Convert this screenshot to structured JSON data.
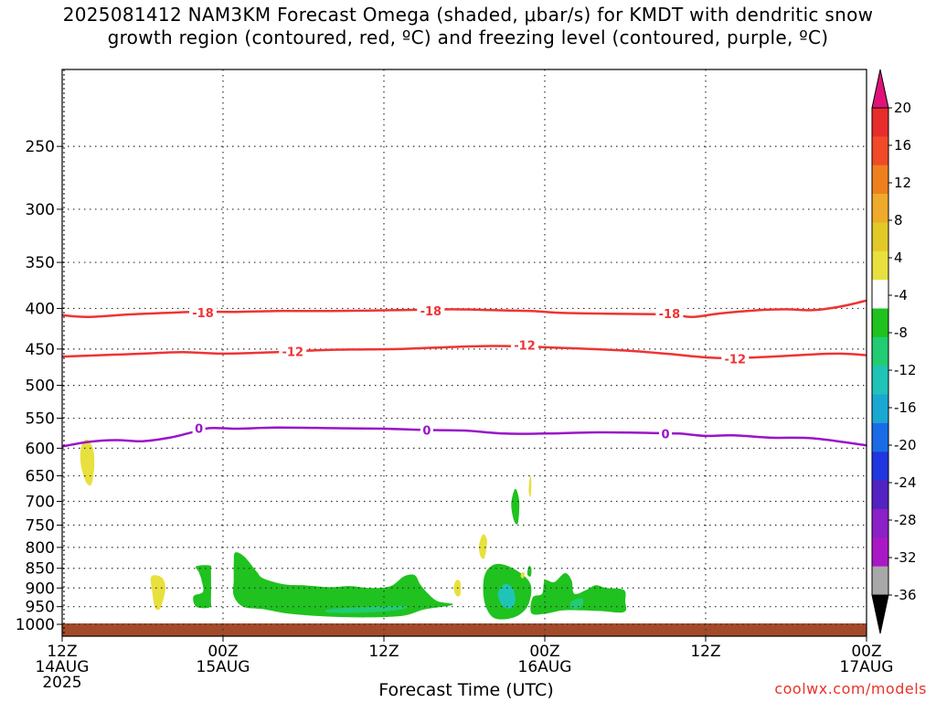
{
  "title": {
    "line1": "2025081412 NAM3KM Forecast Omega (shaded, μbar/s) for KMDT with dendritic snow",
    "line2": "growth region (contoured, red, ºC) and freezing level (contoured, purple, ºC)"
  },
  "credit": "coolwx.com/models",
  "chart_data": {
    "type": "time-height",
    "xlabel": "Forecast Time (UTC)",
    "x_ticks": [
      {
        "hour": 0,
        "lines": [
          "12Z",
          "14AUG",
          "2025"
        ]
      },
      {
        "hour": 12,
        "lines": [
          "00Z",
          "15AUG"
        ]
      },
      {
        "hour": 24,
        "lines": [
          "12Z"
        ]
      },
      {
        "hour": 36,
        "lines": [
          "00Z",
          "16AUG"
        ]
      },
      {
        "hour": 48,
        "lines": [
          "12Z"
        ]
      },
      {
        "hour": 60,
        "lines": [
          "00Z",
          "17AUG"
        ]
      }
    ],
    "xlim_hours": [
      0,
      60
    ],
    "ylabel": "",
    "y_ticks": [
      250,
      300,
      350,
      400,
      450,
      500,
      550,
      600,
      650,
      700,
      750,
      800,
      850,
      900,
      950,
      1000
    ],
    "ylim_hPa": [
      200,
      1035
    ],
    "y_scale": "log-pressure",
    "grid": "dotted",
    "colorbar": {
      "labels": [
        "20",
        "16",
        "12",
        "8",
        "4",
        "-4",
        "-8",
        "-12",
        "-16",
        "-20",
        "-24",
        "-28",
        "-32",
        "-36"
      ],
      "colors": [
        "#e82c2c",
        "#f04a28",
        "#ef7f1e",
        "#eeaa2a",
        "#e2c928",
        "#e8e03e",
        "#ffffff",
        "#1fc21f",
        "#22cc72",
        "#1fc4b6",
        "#1aa8d2",
        "#1a6ce6",
        "#2036e0",
        "#5422c0",
        "#8a20c6",
        "#aa18c6",
        "#a8a8a8"
      ],
      "top_arrow_color": "#e0127a",
      "bottom_arrow_color": "#000000"
    },
    "contours": [
      {
        "name": "-18",
        "color": "#ee3434",
        "points": [
          [
            0,
            408
          ],
          [
            2,
            410
          ],
          [
            5,
            407
          ],
          [
            8,
            405
          ],
          [
            10,
            404
          ],
          [
            13,
            404
          ],
          [
            16,
            403
          ],
          [
            20,
            403
          ],
          [
            25,
            402
          ],
          [
            29,
            401
          ],
          [
            32,
            402
          ],
          [
            35,
            403
          ],
          [
            37,
            405
          ],
          [
            40,
            406
          ],
          [
            45,
            407
          ],
          [
            47,
            410
          ],
          [
            49,
            406
          ],
          [
            52,
            402
          ],
          [
            54,
            401
          ],
          [
            56,
            402
          ],
          [
            58,
            398
          ],
          [
            60,
            391
          ]
        ],
        "labels": [
          [
            10.5,
            405
          ],
          [
            27.5,
            403
          ],
          [
            45.3,
            406
          ]
        ]
      },
      {
        "name": "-12",
        "color": "#ee3434",
        "points": [
          [
            0,
            460
          ],
          [
            3,
            458
          ],
          [
            6,
            456
          ],
          [
            9,
            454
          ],
          [
            12,
            456
          ],
          [
            16,
            454
          ],
          [
            20,
            451
          ],
          [
            25,
            450
          ],
          [
            28,
            448
          ],
          [
            32,
            446
          ],
          [
            35,
            447
          ],
          [
            38,
            449
          ],
          [
            42,
            452
          ],
          [
            45,
            456
          ],
          [
            48,
            461
          ],
          [
            50,
            462
          ],
          [
            53,
            460
          ],
          [
            56,
            457
          ],
          [
            58,
            456
          ],
          [
            60,
            458
          ]
        ],
        "labels": [
          [
            17.2,
            453
          ],
          [
            34.5,
            445
          ],
          [
            50.2,
            463
          ]
        ]
      },
      {
        "name": "0",
        "color": "#9a14c8",
        "points": [
          [
            0,
            597
          ],
          [
            2,
            589
          ],
          [
            4,
            586
          ],
          [
            6,
            588
          ],
          [
            8,
            582
          ],
          [
            9.5,
            574
          ],
          [
            11,
            566
          ],
          [
            13,
            567
          ],
          [
            16,
            565
          ],
          [
            20,
            566
          ],
          [
            24,
            567
          ],
          [
            27,
            569
          ],
          [
            30,
            570
          ],
          [
            33,
            575
          ],
          [
            36,
            575
          ],
          [
            40,
            573
          ],
          [
            44,
            574
          ],
          [
            46,
            575
          ],
          [
            48,
            579
          ],
          [
            50,
            578
          ],
          [
            53,
            582
          ],
          [
            56,
            583
          ],
          [
            60,
            595
          ]
        ],
        "labels": [
          [
            10.2,
            566
          ],
          [
            27.2,
            569
          ],
          [
            45,
            575
          ]
        ]
      }
    ],
    "shaded_regions": [
      {
        "class": "4",
        "color": "#e8e03e",
        "poly": [
          [
            1.8,
            585
          ],
          [
            2.3,
            600
          ],
          [
            2.4,
            630
          ],
          [
            2.2,
            665
          ],
          [
            1.8,
            663
          ],
          [
            1.4,
            630
          ],
          [
            1.4,
            600
          ]
        ]
      },
      {
        "class": "4",
        "color": "#e8e03e",
        "poly": [
          [
            6.9,
            867
          ],
          [
            7.5,
            875
          ],
          [
            7.7,
            905
          ],
          [
            7.3,
            955
          ],
          [
            6.9,
            950
          ],
          [
            6.7,
            905
          ],
          [
            6.6,
            875
          ]
        ]
      },
      {
        "class": "-4",
        "color": "#1fc21f",
        "poly": [
          [
            10,
            845
          ],
          [
            11,
            843
          ],
          [
            11.1,
            855
          ],
          [
            11.1,
            930
          ],
          [
            11,
            952
          ],
          [
            10,
            950
          ],
          [
            9.8,
            922
          ],
          [
            10.5,
            910
          ],
          [
            10.4,
            880
          ],
          [
            10.2,
            860
          ]
        ]
      },
      {
        "class": "-4",
        "color": "#1fc21f",
        "poly": [
          [
            12.9,
            812
          ],
          [
            13.6,
            822
          ],
          [
            14.5,
            858
          ],
          [
            15,
            875
          ],
          [
            16.5,
            890
          ],
          [
            18,
            893
          ],
          [
            20,
            898
          ],
          [
            21.5,
            895
          ],
          [
            23,
            900
          ],
          [
            24.5,
            895
          ],
          [
            25.5,
            870
          ],
          [
            26.3,
            867
          ],
          [
            26.7,
            890
          ],
          [
            27.3,
            915
          ],
          [
            28,
            935
          ],
          [
            29.1,
            942
          ],
          [
            28.8,
            948
          ],
          [
            27,
            958
          ],
          [
            25.5,
            975
          ],
          [
            23,
            980
          ],
          [
            20,
            978
          ],
          [
            17,
            970
          ],
          [
            15,
            957
          ],
          [
            13.5,
            950
          ],
          [
            12.8,
            920
          ],
          [
            12.8,
            880
          ],
          [
            12.8,
            840
          ]
        ]
      },
      {
        "class": "-8",
        "color": "#22cc72",
        "poly": [
          [
            20,
            957
          ],
          [
            23,
            950
          ],
          [
            25.5,
            948
          ],
          [
            25.3,
            958
          ],
          [
            23,
            966
          ],
          [
            20,
            967
          ]
        ]
      },
      {
        "class": "4",
        "color": "#e8e03e",
        "poly": [
          [
            29.4,
            880
          ],
          [
            29.7,
            885
          ],
          [
            29.7,
            918
          ],
          [
            29.4,
            920
          ],
          [
            29.2,
            900
          ]
        ]
      },
      {
        "class": "4",
        "color": "#e8e03e",
        "poly": [
          [
            31.4,
            770
          ],
          [
            31.7,
            785
          ],
          [
            31.5,
            825
          ],
          [
            31.2,
            820
          ],
          [
            31.1,
            795
          ]
        ]
      },
      {
        "class": "-4",
        "color": "#1fc21f",
        "poly": [
          [
            32.3,
            840
          ],
          [
            33.3,
            845
          ],
          [
            34.5,
            870
          ],
          [
            35,
            900
          ],
          [
            34.7,
            950
          ],
          [
            33.7,
            980
          ],
          [
            32.3,
            983
          ],
          [
            31.6,
            950
          ],
          [
            31.4,
            900
          ],
          [
            31.6,
            860
          ]
        ]
      },
      {
        "class": "-12",
        "color": "#1fc4b6",
        "poly": [
          [
            33,
            890
          ],
          [
            33.6,
            900
          ],
          [
            33.8,
            935
          ],
          [
            33.4,
            955
          ],
          [
            32.8,
            945
          ],
          [
            32.5,
            915
          ]
        ]
      },
      {
        "class": "-4",
        "color": "#1fc21f",
        "poly": [
          [
            33.8,
            675
          ],
          [
            34.1,
            700
          ],
          [
            34.0,
            745
          ],
          [
            33.7,
            740
          ],
          [
            33.5,
            705
          ]
        ]
      },
      {
        "class": "4",
        "color": "#e8e03e",
        "poly": [
          [
            34.9,
            650
          ],
          [
            35.0,
            660
          ],
          [
            34.95,
            690
          ],
          [
            34.8,
            680
          ]
        ]
      },
      {
        "class": "-4",
        "color": "#1fc21f",
        "poly": [
          [
            34.8,
            845
          ],
          [
            35.0,
            850
          ],
          [
            34.95,
            870
          ],
          [
            34.7,
            865
          ]
        ]
      },
      {
        "class": "4",
        "color": "#e8e03e",
        "poly": [
          [
            34.3,
            860
          ],
          [
            34.5,
            862
          ],
          [
            34.4,
            875
          ],
          [
            34.2,
            870
          ]
        ]
      },
      {
        "class": "-4",
        "color": "#1fc21f",
        "poly": [
          [
            36,
            880
          ],
          [
            36.7,
            885
          ],
          [
            37.5,
            862
          ],
          [
            38,
            880
          ],
          [
            38.2,
            915
          ],
          [
            39.1,
            905
          ],
          [
            39.8,
            893
          ],
          [
            40.6,
            900
          ],
          [
            41.9,
            905
          ],
          [
            42,
            935
          ],
          [
            41.9,
            965
          ],
          [
            40,
            962
          ],
          [
            37.5,
            960
          ],
          [
            36,
            970
          ],
          [
            35,
            968
          ],
          [
            35.1,
            925
          ],
          [
            35.8,
            915
          ]
        ]
      },
      {
        "class": "-8",
        "color": "#22cc72",
        "poly": [
          [
            38,
            935
          ],
          [
            38.8,
            928
          ],
          [
            38.7,
            952
          ],
          [
            38,
            955
          ]
        ]
      }
    ],
    "surface": {
      "name": "below ground",
      "color": "#a24a2a",
      "top_hPa": 1000
    }
  }
}
